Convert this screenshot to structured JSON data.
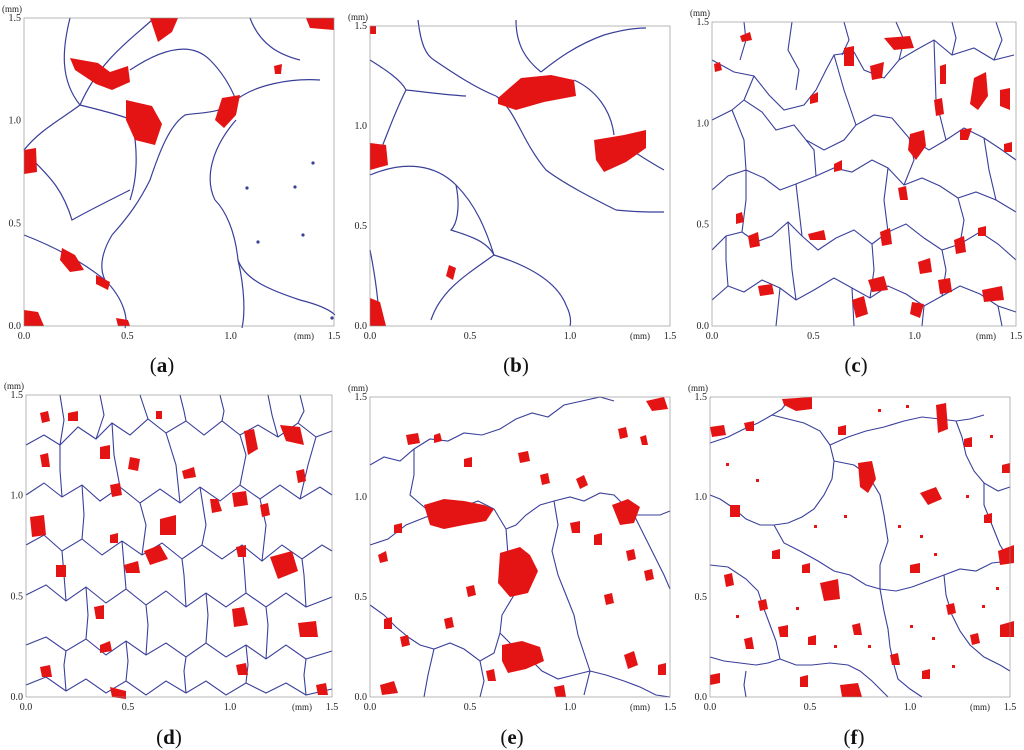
{
  "colors": {
    "boundary": "#3a3f9a",
    "phase": "#e41414",
    "background": "#ffffff"
  },
  "axes": {
    "unit_label": "(mm)",
    "x_ticks": [
      "0.0",
      "0.5",
      "1.0",
      "1.5"
    ],
    "y_ticks": [
      "0.0",
      "0.5",
      "1.0",
      "1.5"
    ],
    "range": [
      0,
      1.5
    ]
  },
  "panels": [
    {
      "id": "a",
      "caption": "a"
    },
    {
      "id": "b",
      "caption": "b"
    },
    {
      "id": "c",
      "caption": "c"
    },
    {
      "id": "d",
      "caption": "d"
    },
    {
      "id": "e",
      "caption": "e"
    },
    {
      "id": "f",
      "caption": "f"
    }
  ]
}
